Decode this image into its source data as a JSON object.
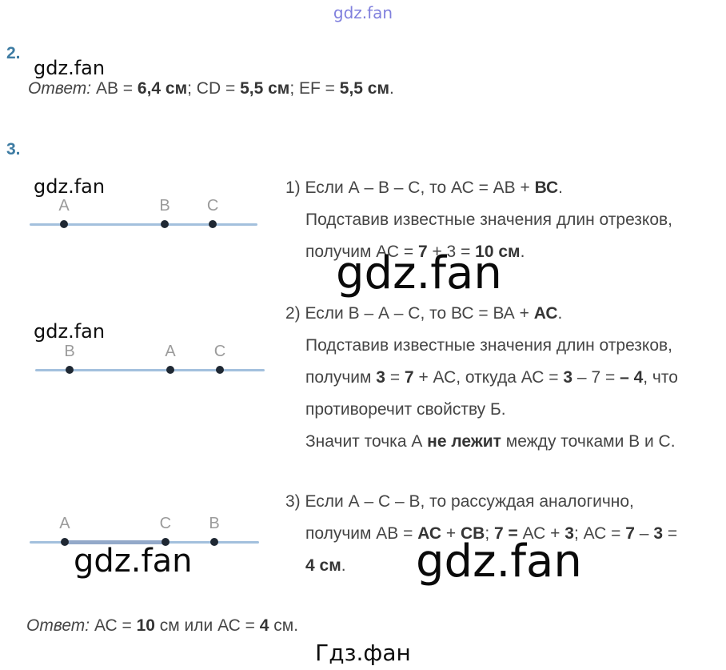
{
  "watermarks": {
    "top": "gdz.fan",
    "inline": "gdz.fan",
    "bottom": "Гдз.фан"
  },
  "colors": {
    "section_number": "#3e7ca3",
    "number_line": "#a3c0dd",
    "number_line_segment": "#93a9c9",
    "point_dot": "#1f2833",
    "point_label": "#9b9b9b",
    "body_text": "#454545",
    "top_watermark": "#6b6bd8",
    "watermark_black": "#0e0e0e"
  },
  "section2": {
    "number": "2.",
    "answer": [
      {
        "t": "Ответ:",
        "i": true
      },
      {
        "t": " AB = "
      },
      {
        "t": "6,4 см",
        "b": true
      },
      {
        "t": "; CD = "
      },
      {
        "t": "5,5 см",
        "b": true
      },
      {
        "t": "; EF = "
      },
      {
        "t": "5,5 см",
        "b": true
      },
      {
        "t": "."
      }
    ]
  },
  "section3": {
    "number": "3.",
    "diagrams": [
      {
        "points": [
          {
            "label": "А",
            "pos": 15.1
          },
          {
            "label": "В",
            "pos": 59.3
          },
          {
            "label": "С",
            "pos": 80.4
          }
        ]
      },
      {
        "points": [
          {
            "label": "В",
            "pos": 15.0
          },
          {
            "label": "А",
            "pos": 58.9
          },
          {
            "label": "С",
            "pos": 80.5
          }
        ]
      },
      {
        "points": [
          {
            "label": "А",
            "pos": 15.3
          },
          {
            "label": "С",
            "pos": 59.2
          },
          {
            "label": "В",
            "pos": 80.5
          }
        ],
        "segment": {
          "from": 15.3,
          "to": 59.2
        }
      }
    ],
    "part1": {
      "lines": [
        {
          "segs": [
            {
              "t": "1) Если А – В – С, то АС = АВ + "
            },
            {
              "t": "ВС",
              "b": true
            },
            {
              "t": "."
            }
          ]
        },
        {
          "ind": true,
          "segs": [
            {
              "t": "Подставив известные значения длин отрезков,"
            }
          ]
        },
        {
          "ind": true,
          "segs": [
            {
              "t": "получим АС = "
            },
            {
              "t": "7",
              "b": true
            },
            {
              "t": " + 3 = "
            },
            {
              "t": "10 см",
              "b": true
            },
            {
              "t": "."
            }
          ]
        }
      ]
    },
    "part2": {
      "lines": [
        {
          "segs": [
            {
              "t": "2) Если В – А – С, то ВС = ВА + "
            },
            {
              "t": "АС",
              "b": true
            },
            {
              "t": "."
            }
          ]
        },
        {
          "ind": true,
          "segs": [
            {
              "t": "Подставив известные значения длин отрезков,"
            }
          ]
        },
        {
          "ind": true,
          "segs": [
            {
              "t": "получим "
            },
            {
              "t": "3",
              "b": true
            },
            {
              "t": " = "
            },
            {
              "t": "7",
              "b": true
            },
            {
              "t": " + АС, откуда АС = "
            },
            {
              "t": "3",
              "b": true
            },
            {
              "t": " – 7 = "
            },
            {
              "t": "– 4",
              "b": true
            },
            {
              "t": ", что"
            }
          ]
        },
        {
          "ind": true,
          "segs": [
            {
              "t": "противоречит свойству Б."
            }
          ]
        },
        {
          "ind": true,
          "segs": [
            {
              "t": "Значит точка А "
            },
            {
              "t": "не лежит",
              "b": true
            },
            {
              "t": " между точками В и С."
            }
          ]
        }
      ]
    },
    "part3": {
      "lines": [
        {
          "segs": [
            {
              "t": "3) Если А – С – В, то рассуждая аналогично,"
            }
          ]
        },
        {
          "ind": true,
          "segs": [
            {
              "t": "получим АВ = "
            },
            {
              "t": "АС",
              "b": true
            },
            {
              "t": " + "
            },
            {
              "t": "СВ",
              "b": true
            },
            {
              "t": "; "
            },
            {
              "t": "7 =",
              "b": true
            },
            {
              "t": " АС + "
            },
            {
              "t": "3",
              "b": true
            },
            {
              "t": "; АС = "
            },
            {
              "t": "7",
              "b": true
            },
            {
              "t": " – "
            },
            {
              "t": "3",
              "b": true
            },
            {
              "t": " ="
            }
          ]
        },
        {
          "ind": true,
          "segs": [
            {
              "t": "4 см",
              "b": true
            },
            {
              "t": "."
            }
          ]
        }
      ]
    }
  },
  "final_answer": [
    {
      "t": "Ответ:",
      "i": true
    },
    {
      "t": " АС = "
    },
    {
      "t": "10",
      "b": true
    },
    {
      "t": " см или АС = "
    },
    {
      "t": "4",
      "b": true
    },
    {
      "t": " см."
    }
  ]
}
